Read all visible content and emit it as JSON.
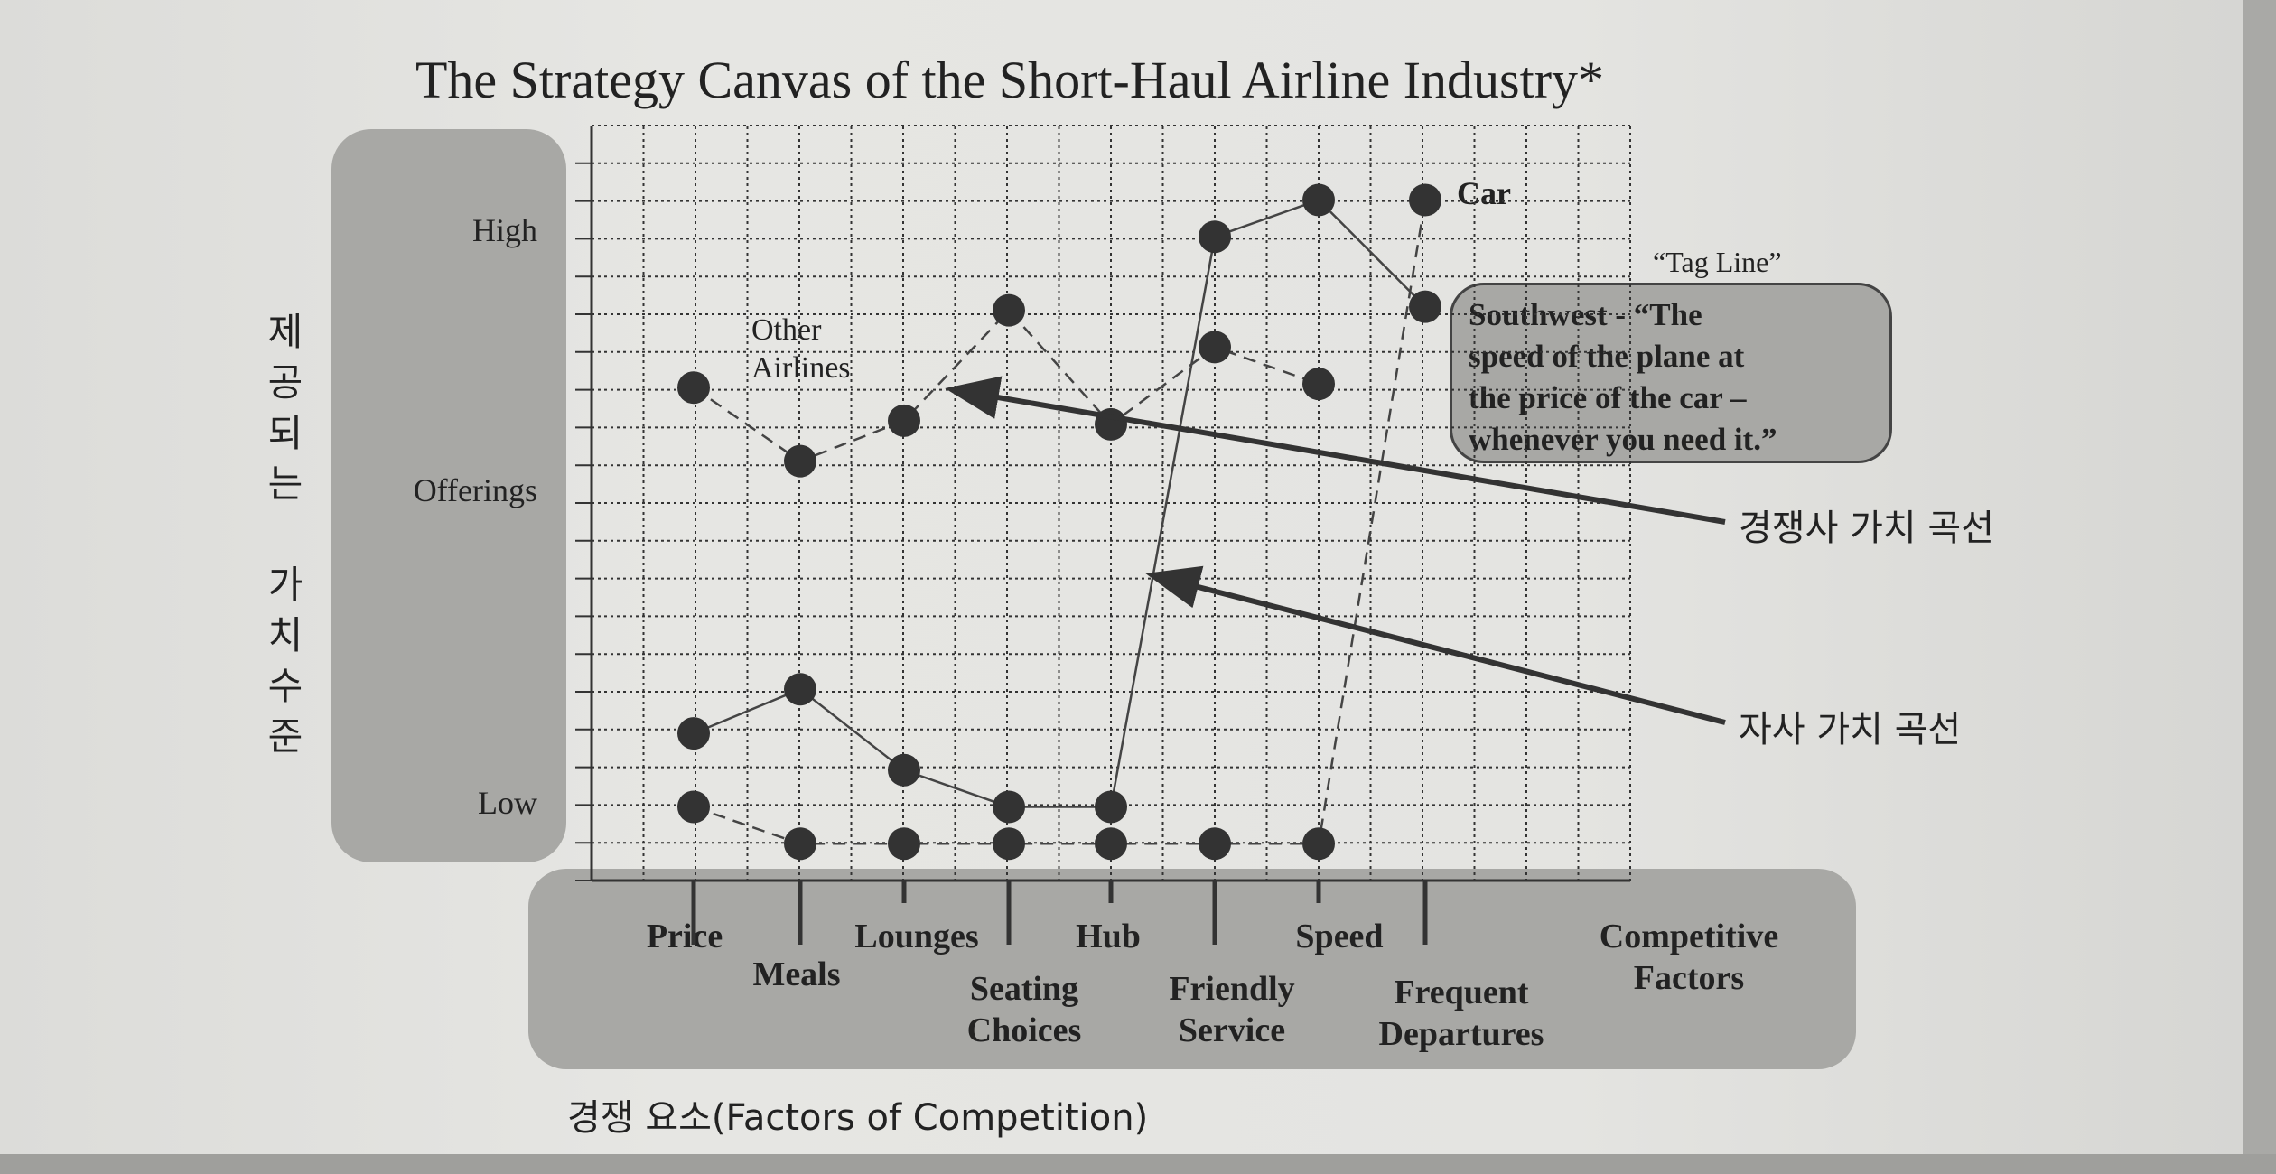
{
  "chart_data": {
    "type": "line",
    "title": "The Strategy Canvas of the Short-Haul Airline Industry*",
    "ylabel": "Offerings",
    "xlabel": "Competitive Factors",
    "y_ticks": [
      "High",
      "Offerings",
      "Low"
    ],
    "categories": [
      "Price",
      "Meals",
      "Lounges",
      "Seating Choices",
      "Hub",
      "Friendly Service",
      "Speed",
      "Frequent Departures"
    ],
    "series": [
      {
        "name": "Other Airlines",
        "style": "dashed",
        "values": [
          12.4,
          10.4,
          11.5,
          14.5,
          11.4,
          13.5,
          12.5,
          null
        ]
      },
      {
        "name": "Southwest",
        "style": "solid",
        "values": [
          3,
          4.2,
          2,
          1,
          1,
          16.5,
          17.5,
          14.6
        ]
      },
      {
        "name": "Car",
        "style": "dashed",
        "values": [
          1,
          0,
          0,
          0,
          0,
          0,
          0,
          17.5
        ]
      }
    ],
    "ylim": [
      -1,
      19.5
    ]
  },
  "labels": {
    "korean_y": "제\n공\n되\n는\n\n가\n치\n수\n준",
    "korean_x": "경쟁 요소(Factors of Competition)",
    "y_high": "High",
    "y_mid": "Offerings",
    "y_low": "Low",
    "other_airlines": "Other\nAirlines",
    "car": "Car",
    "tag_line": "“Tag Line”",
    "callout": "Southwest - “The\nspeed of the plane at\nthe price of the car –\nwhenever you need it.”",
    "competitor_curve": "경쟁사 가치 곡선",
    "own_curve": "자사 가치 곡선",
    "competitive_factors": "Competitive\nFactors"
  },
  "colors": {
    "grid": "#333333",
    "marker": "#333333",
    "line": "#444444"
  }
}
